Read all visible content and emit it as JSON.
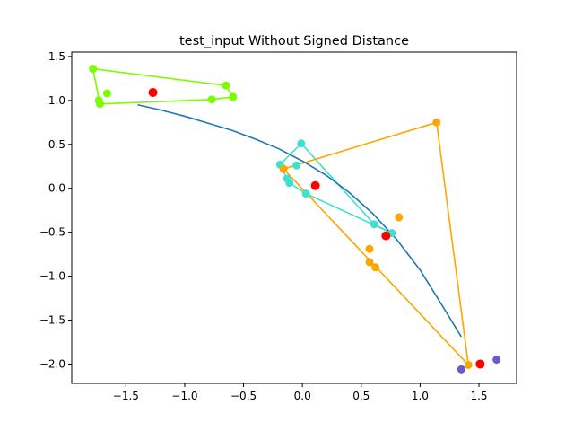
{
  "chart_data": {
    "type": "scatter",
    "title": "test_input Without Signed Distance",
    "xlabel": "",
    "ylabel": "",
    "xlim": [
      -1.96,
      1.82
    ],
    "ylim": [
      -2.22,
      1.55
    ],
    "xticks": [
      -1.5,
      -1.0,
      -0.5,
      0.0,
      0.5,
      1.0,
      1.5
    ],
    "yticks": [
      -2.0,
      -1.5,
      -1.0,
      -0.5,
      0.0,
      0.5,
      1.0,
      1.5
    ],
    "xtick_labels": [
      "−1.5",
      "−1.0",
      "−0.5",
      "0.0",
      "0.5",
      "1.0",
      "1.5"
    ],
    "ytick_labels": [
      "−2.0",
      "−1.5",
      "−1.0",
      "−0.5",
      "0.0",
      "0.5",
      "1.0",
      "1.5"
    ],
    "grid": false,
    "curve": {
      "color": "#1f77b4",
      "x": [
        -1.4,
        -1.2,
        -1.0,
        -0.8,
        -0.6,
        -0.4,
        -0.2,
        0.0,
        0.2,
        0.4,
        0.6,
        0.8,
        1.0,
        1.2,
        1.35
      ],
      "y": [
        0.95,
        0.89,
        0.82,
        0.74,
        0.66,
        0.56,
        0.45,
        0.31,
        0.15,
        -0.05,
        -0.29,
        -0.58,
        -0.93,
        -1.36,
        -1.69
      ]
    },
    "groups": [
      {
        "color": "#7cfc00",
        "polygon": [
          [
            -1.78,
            1.36
          ],
          [
            -0.65,
            1.17
          ],
          [
            -0.59,
            1.04
          ],
          [
            -0.77,
            1.01
          ],
          [
            -1.72,
            0.96
          ],
          [
            -1.78,
            1.36
          ]
        ],
        "points": [
          [
            -1.78,
            1.36
          ],
          [
            -0.65,
            1.17
          ],
          [
            -0.59,
            1.04
          ],
          [
            -0.77,
            1.01
          ],
          [
            -1.72,
            0.96
          ],
          [
            -1.66,
            1.08
          ],
          [
            -1.73,
            1.0
          ]
        ],
        "centroid": [
          -1.27,
          1.09
        ]
      },
      {
        "color": "#40e0d0",
        "polygon": [
          [
            -0.01,
            0.51
          ],
          [
            -0.19,
            0.27
          ],
          [
            -0.11,
            0.06
          ],
          [
            0.03,
            -0.06
          ],
          [
            0.76,
            -0.51
          ],
          [
            0.61,
            -0.41
          ],
          [
            -0.01,
            0.51
          ]
        ],
        "points": [
          [
            -0.01,
            0.51
          ],
          [
            -0.19,
            0.27
          ],
          [
            -0.05,
            0.26
          ],
          [
            -0.13,
            0.11
          ],
          [
            -0.11,
            0.06
          ],
          [
            0.03,
            -0.06
          ],
          [
            0.61,
            -0.41
          ],
          [
            0.76,
            -0.51
          ]
        ],
        "centroid": [
          0.11,
          0.03
        ]
      },
      {
        "color": "#ffa500",
        "polygon": [
          [
            1.14,
            0.75
          ],
          [
            1.41,
            -2.01
          ],
          [
            -0.16,
            0.22
          ],
          [
            1.14,
            0.75
          ]
        ],
        "points": [
          [
            1.14,
            0.75
          ],
          [
            -0.16,
            0.22
          ],
          [
            1.41,
            -2.01
          ],
          [
            0.82,
            -0.33
          ],
          [
            0.57,
            -0.69
          ],
          [
            0.57,
            -0.84
          ],
          [
            0.62,
            -0.9
          ]
        ],
        "centroid": [
          0.71,
          -0.54
        ]
      },
      {
        "color": "#6a5acd",
        "polygon": [],
        "points": [
          [
            1.35,
            -2.06
          ],
          [
            1.65,
            -1.95
          ]
        ],
        "centroid": [
          1.51,
          -2.0
        ]
      }
    ],
    "centroid_color": "#ff0000"
  }
}
